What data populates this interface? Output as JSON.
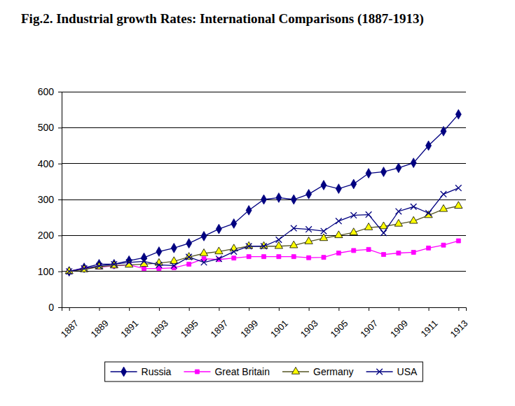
{
  "chart_data": {
    "type": "line",
    "title": "Fig.2. Industrial growth Rates: International Comparisons (1887-1913)",
    "x": [
      1887,
      1888,
      1889,
      1890,
      1891,
      1892,
      1893,
      1894,
      1895,
      1896,
      1897,
      1898,
      1899,
      1900,
      1901,
      1902,
      1903,
      1904,
      1905,
      1906,
      1907,
      1908,
      1909,
      1910,
      1911,
      1912,
      1913
    ],
    "xlim": [
      1886.5,
      1913.5
    ],
    "xticks": [
      1887,
      1889,
      1891,
      1893,
      1895,
      1897,
      1899,
      1901,
      1903,
      1905,
      1907,
      1909,
      1911,
      1913
    ],
    "ylim": [
      0,
      600
    ],
    "yticks": [
      0,
      100,
      200,
      300,
      400,
      500,
      600
    ],
    "grid": true,
    "legend": "bottom",
    "series": [
      {
        "name": "Russia",
        "color": "#000080",
        "marker": "diamond",
        "values": [
          100,
          110,
          120,
          120,
          130,
          138,
          155,
          165,
          178,
          198,
          218,
          233,
          270,
          300,
          305,
          300,
          315,
          340,
          330,
          343,
          373,
          377,
          388,
          402,
          450,
          490,
          537
        ]
      },
      {
        "name": "Great Britain",
        "color": "#ff00ff",
        "marker": "square",
        "values": [
          100,
          108,
          112,
          115,
          118,
          108,
          108,
          110,
          120,
          135,
          133,
          137,
          141,
          141,
          141,
          141,
          138,
          139,
          151,
          158,
          161,
          147,
          151,
          153,
          165,
          173,
          185
        ]
      },
      {
        "name": "Germany",
        "color": "#555522",
        "marker": "triangle",
        "values": [
          100,
          105,
          113,
          116,
          118,
          120,
          123,
          128,
          140,
          150,
          155,
          163,
          170,
          170,
          170,
          172,
          183,
          192,
          200,
          208,
          222,
          225,
          232,
          240,
          256,
          273,
          282
        ]
      },
      {
        "name": "USA",
        "color": "#000080",
        "marker": "x",
        "values": [
          100,
          108,
          115,
          120,
          125,
          128,
          118,
          116,
          140,
          125,
          135,
          155,
          170,
          170,
          188,
          220,
          217,
          212,
          240,
          256,
          258,
          207,
          267,
          280,
          262,
          315,
          332
        ]
      }
    ]
  }
}
